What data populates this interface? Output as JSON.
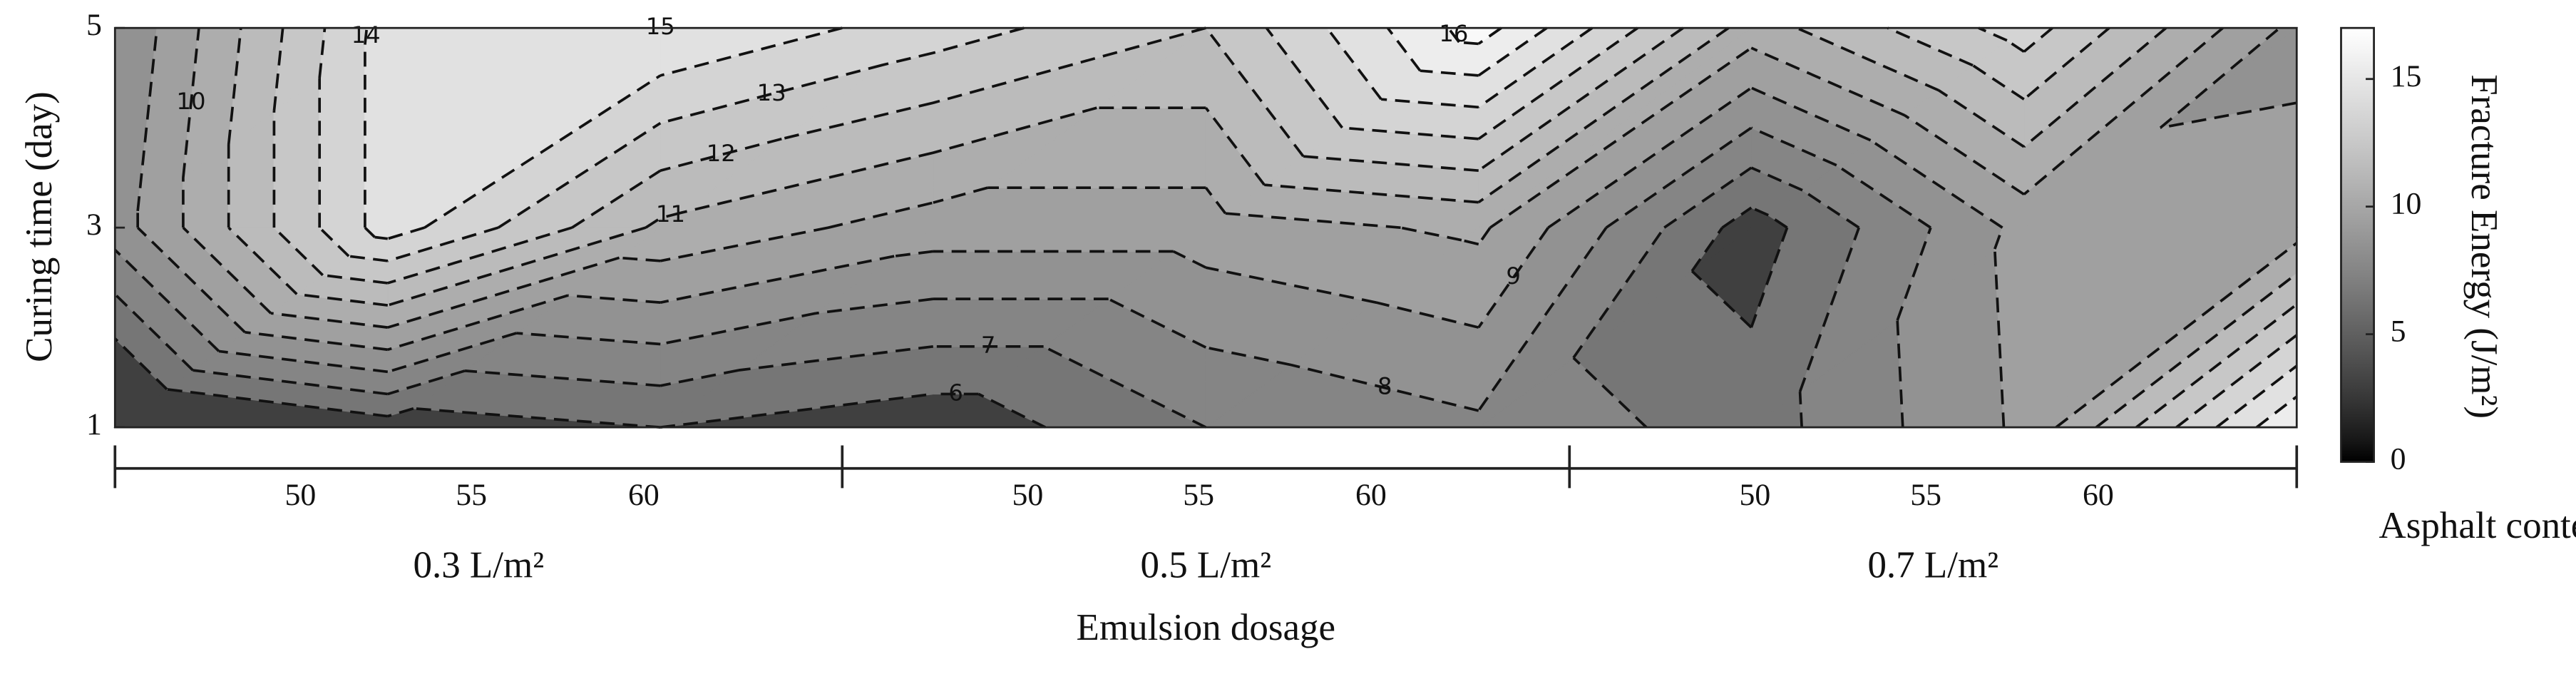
{
  "chart_data": {
    "type": "contour",
    "ylabel": "Curing time (day)",
    "y": [
      1,
      3,
      5
    ],
    "ylim": [
      1,
      5
    ],
    "yticks": [
      1,
      3,
      5
    ],
    "groups": [
      {
        "name": "0.3 L/m²",
        "categories": [
          "50",
          "55",
          "60"
        ]
      },
      {
        "name": "0.5 L/m²",
        "categories": [
          "50",
          "55",
          "60"
        ]
      },
      {
        "name": "0.7 L/m²",
        "categories": [
          "50",
          "55",
          "60"
        ]
      }
    ],
    "category_label": "Asphalt content (%)",
    "xlabel": "Emulsion dosage",
    "z": [
      [
        4,
        5.5,
        6,
        5.3,
        7,
        7.8,
        6.5,
        9.2,
        16
      ],
      [
        8.5,
        14.5,
        10.8,
        9.5,
        9.5,
        10.2,
        5.5,
        9.3,
        9.5
      ],
      [
        8,
        14.5,
        15,
        13.5,
        12,
        16.5,
        10.5,
        13.5,
        8.7
      ]
    ],
    "levels": [
      6,
      7,
      8,
      9,
      10,
      11,
      12,
      13,
      14,
      15,
      16
    ],
    "colormap": "gray",
    "colorbar_label": "Fracture Energy (J/m²)",
    "zlim": [
      0,
      17
    ],
    "zticks": [
      0,
      5,
      10,
      15
    ]
  }
}
